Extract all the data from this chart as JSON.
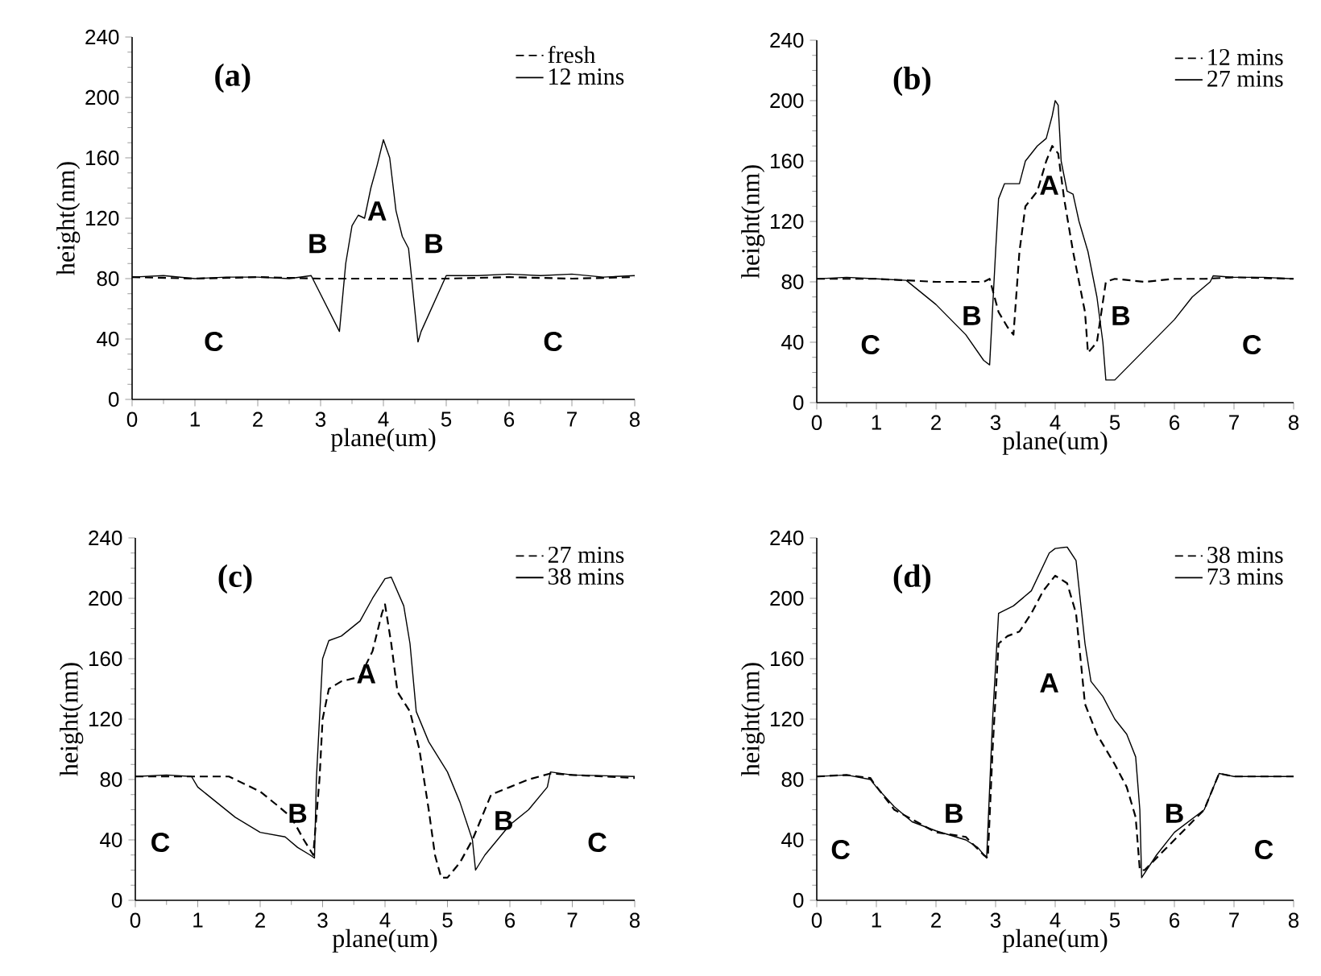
{
  "chart_data": [
    {
      "type": "line",
      "title": "(a)",
      "xlabel": "plane(um)",
      "ylabel": "height(nm)",
      "xlim": [
        0,
        8
      ],
      "ylim": [
        0,
        240
      ],
      "xticks": [
        0,
        1,
        2,
        3,
        4,
        5,
        6,
        7,
        8
      ],
      "yticks": [
        0,
        40,
        80,
        120,
        160,
        200,
        240
      ],
      "grid": false,
      "legend": "top right",
      "marker": "none",
      "series": [
        {
          "name": "fresh",
          "color": "#000000",
          "line_style": "dashed",
          "x": [
            0,
            1,
            2,
            3,
            4,
            5,
            6,
            7,
            8
          ],
          "values": [
            81,
            80,
            81,
            80,
            80,
            80,
            81,
            80,
            81
          ]
        },
        {
          "name": "12 mins",
          "color": "#000000",
          "line_style": "solid",
          "x": [
            0,
            0.5,
            1,
            1.5,
            2,
            2.5,
            2.85,
            3.3,
            3.4,
            3.5,
            3.6,
            3.7,
            3.8,
            3.9,
            4.0,
            4.1,
            4.2,
            4.3,
            4.4,
            4.45,
            4.55,
            4.6,
            5.0,
            5.5,
            6,
            6.5,
            7,
            7.5,
            8
          ],
          "values": [
            81,
            82,
            80,
            81,
            81,
            80,
            82,
            45,
            90,
            115,
            122,
            120,
            140,
            155,
            172,
            160,
            125,
            108,
            100,
            80,
            38,
            45,
            82,
            82,
            83,
            82,
            83,
            81,
            82
          ]
        }
      ],
      "annotations": [
        "A",
        "B",
        "B",
        "C",
        "C"
      ]
    },
    {
      "type": "line",
      "title": "(b)",
      "xlabel": "plane(um)",
      "ylabel": "height(nm)",
      "xlim": [
        0,
        8
      ],
      "ylim": [
        0,
        240
      ],
      "xticks": [
        0,
        1,
        2,
        3,
        4,
        5,
        6,
        7,
        8
      ],
      "yticks": [
        0,
        40,
        80,
        120,
        160,
        200,
        240
      ],
      "grid": false,
      "legend": "top right",
      "marker": "none",
      "series": [
        {
          "name": "12 mins",
          "color": "#000000",
          "line_style": "dashed",
          "x": [
            0,
            0.5,
            1,
            1.5,
            2,
            2.5,
            2.8,
            2.9,
            3.05,
            3.2,
            3.3,
            3.4,
            3.5,
            3.7,
            3.85,
            3.95,
            4.05,
            4.15,
            4.3,
            4.5,
            4.55,
            4.7,
            4.85,
            5.0,
            5.5,
            6,
            6.5,
            7,
            8
          ],
          "values": [
            82,
            82,
            82,
            81,
            80,
            80,
            80,
            82,
            60,
            50,
            45,
            100,
            130,
            140,
            160,
            170,
            165,
            135,
            100,
            60,
            33,
            40,
            80,
            82,
            80,
            82,
            82,
            83,
            82
          ]
        },
        {
          "name": "27 mins",
          "color": "#000000",
          "line_style": "solid",
          "x": [
            0,
            0.5,
            1,
            1.5,
            2.0,
            2.5,
            2.8,
            2.9,
            3.0,
            3.05,
            3.15,
            3.4,
            3.5,
            3.7,
            3.85,
            3.95,
            4.0,
            4.05,
            4.1,
            4.2,
            4.3,
            4.4,
            4.55,
            4.7,
            4.8,
            4.85,
            5.0,
            5.5,
            6.0,
            6.3,
            6.6,
            6.65,
            7,
            7.5,
            8
          ],
          "values": [
            82,
            83,
            82,
            81,
            65,
            45,
            28,
            25,
            100,
            135,
            145,
            145,
            160,
            170,
            175,
            190,
            200,
            197,
            160,
            140,
            138,
            120,
            100,
            70,
            40,
            15,
            15,
            35,
            55,
            70,
            80,
            84,
            83,
            83,
            82
          ]
        }
      ],
      "annotations": [
        "A",
        "B",
        "B",
        "C",
        "C"
      ]
    },
    {
      "type": "line",
      "title": "(c)",
      "xlabel": "plane(um)",
      "ylabel": "height(nm)",
      "xlim": [
        0,
        8
      ],
      "ylim": [
        0,
        240
      ],
      "xticks": [
        0,
        1,
        2,
        3,
        4,
        5,
        6,
        7,
        8
      ],
      "yticks": [
        0,
        40,
        80,
        120,
        160,
        200,
        240
      ],
      "grid": false,
      "legend": "top right",
      "marker": "none",
      "series": [
        {
          "name": "27 mins",
          "color": "#000000",
          "line_style": "dashed",
          "x": [
            0,
            0.9,
            1.5,
            2.0,
            2.3,
            2.5,
            2.7,
            2.85,
            2.95,
            3.0,
            3.1,
            3.3,
            3.6,
            3.8,
            3.95,
            4.0,
            4.1,
            4.2,
            4.4,
            4.55,
            4.7,
            4.8,
            4.9,
            5.0,
            5.2,
            5.4,
            5.7,
            6.0,
            6.3,
            6.65,
            7,
            8
          ],
          "values": [
            82,
            82,
            82,
            72,
            62,
            55,
            40,
            30,
            80,
            120,
            140,
            145,
            148,
            165,
            190,
            196,
            170,
            138,
            125,
            100,
            60,
            30,
            15,
            15,
            25,
            40,
            70,
            75,
            80,
            84,
            83,
            81
          ]
        },
        {
          "name": "38 mins",
          "color": "#000000",
          "line_style": "solid",
          "x": [
            0,
            0.5,
            0.9,
            1.0,
            1.3,
            1.6,
            2.0,
            2.4,
            2.6,
            2.8,
            2.87,
            2.9,
            3.0,
            3.1,
            3.3,
            3.6,
            3.8,
            4.0,
            4.1,
            4.3,
            4.4,
            4.5,
            4.7,
            5.0,
            5.2,
            5.4,
            5.45,
            5.6,
            6.0,
            6.3,
            6.6,
            6.65,
            7,
            8
          ],
          "values": [
            82,
            83,
            82,
            75,
            65,
            55,
            45,
            42,
            35,
            30,
            28,
            80,
            160,
            172,
            175,
            185,
            200,
            213,
            214,
            195,
            170,
            125,
            105,
            85,
            65,
            40,
            20,
            30,
            50,
            60,
            75,
            85,
            83,
            82
          ]
        }
      ],
      "annotations": [
        "A",
        "B",
        "B",
        "C",
        "C"
      ]
    },
    {
      "type": "line",
      "title": "(d)",
      "xlabel": "plane(um)",
      "ylabel": "height(nm)",
      "xlim": [
        0,
        8
      ],
      "ylim": [
        0,
        240
      ],
      "xticks": [
        0,
        1,
        2,
        3,
        4,
        5,
        6,
        7,
        8
      ],
      "yticks": [
        0,
        40,
        80,
        120,
        160,
        200,
        240
      ],
      "grid": false,
      "legend": "top right",
      "marker": "none",
      "series": [
        {
          "name": "38 mins",
          "color": "#000000",
          "line_style": "dashed",
          "x": [
            0,
            0.5,
            0.9,
            0.95,
            1.3,
            2.0,
            2.5,
            2.8,
            2.87,
            2.95,
            3.05,
            3.2,
            3.4,
            3.6,
            3.8,
            4.0,
            4.2,
            4.35,
            4.45,
            4.5,
            4.7,
            5.0,
            5.2,
            5.35,
            5.42,
            5.5,
            6.0,
            6.5,
            6.75,
            7,
            8
          ],
          "values": [
            82,
            83,
            81,
            78,
            60,
            45,
            42,
            30,
            28,
            100,
            170,
            175,
            178,
            190,
            205,
            215,
            210,
            190,
            150,
            130,
            110,
            90,
            75,
            55,
            20,
            20,
            40,
            60,
            84,
            82,
            82
          ]
        },
        {
          "name": "73 mins",
          "color": "#000000",
          "line_style": "solid",
          "x": [
            0,
            0.5,
            0.9,
            1.0,
            1.3,
            1.6,
            2.0,
            2.5,
            2.7,
            2.85,
            2.95,
            3.05,
            3.3,
            3.6,
            3.9,
            4.0,
            4.2,
            4.35,
            4.5,
            4.6,
            4.8,
            5.0,
            5.2,
            5.35,
            5.42,
            5.45,
            5.7,
            6.0,
            6.5,
            6.75,
            7,
            8
          ],
          "values": [
            82,
            83,
            80,
            75,
            62,
            52,
            46,
            40,
            35,
            28,
            120,
            190,
            195,
            205,
            230,
            233,
            234,
            225,
            170,
            145,
            135,
            120,
            110,
            95,
            60,
            15,
            30,
            45,
            60,
            84,
            82,
            82
          ]
        }
      ],
      "annotations": [
        "A",
        "B",
        "B",
        "C",
        "C"
      ]
    }
  ]
}
